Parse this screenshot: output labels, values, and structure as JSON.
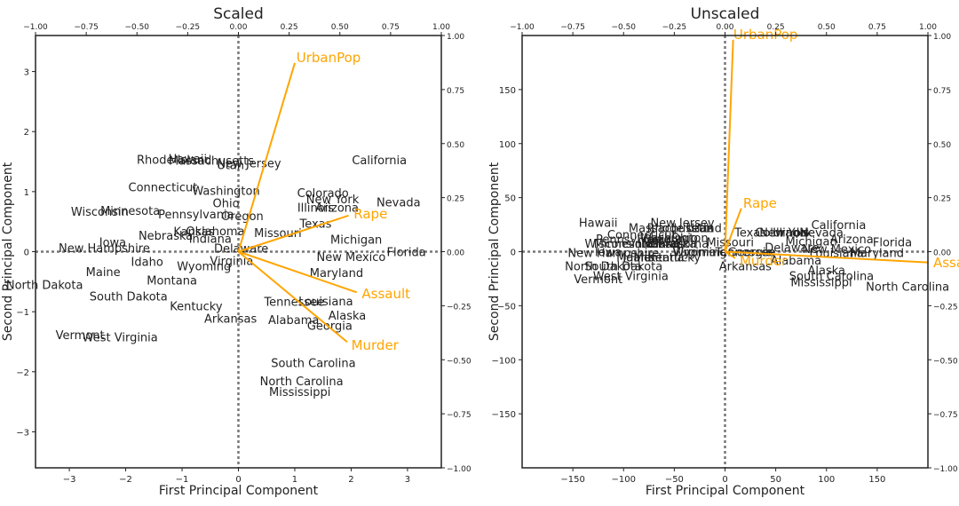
{
  "chart_data": [
    {
      "type": "scatter",
      "title": "Scaled",
      "xlabel": "First Principal Component",
      "ylabel": "Second Principal Component",
      "xlim": [
        -3.6,
        3.6
      ],
      "ylim": [
        -3.6,
        3.6
      ],
      "xticks": [
        "−3",
        "−2",
        "−1",
        "0",
        "1",
        "2",
        "3"
      ],
      "xtick_values": [
        -3,
        -2,
        -1,
        0,
        1,
        2,
        3
      ],
      "yticks": [
        "−3",
        "−2",
        "−1",
        "0",
        "1",
        "2",
        "3"
      ],
      "ytick_values": [
        -3,
        -2,
        -1,
        0,
        1,
        2,
        3
      ],
      "loading_lim": [
        -1,
        1
      ],
      "top_ticks": [
        "−1.00",
        "−0.75",
        "−0.50",
        "−0.25",
        "0.00",
        "0.25",
        "0.50",
        "0.75",
        "1.00"
      ],
      "right_ticks": [
        "−1.00",
        "−0.75",
        "−0.50",
        "−0.25",
        "0.00",
        "0.25",
        "0.50",
        "0.75",
        "1.00"
      ],
      "tick_values": [
        -1,
        -0.75,
        -0.5,
        -0.25,
        0,
        0.25,
        0.5,
        0.75,
        1
      ],
      "points": [
        {
          "label": "Alabama",
          "x": 0.98,
          "y": -1.13
        },
        {
          "label": "Alaska",
          "x": 1.93,
          "y": -1.06
        },
        {
          "label": "Arizona",
          "x": 1.75,
          "y": 0.74
        },
        {
          "label": "Arkansas",
          "x": -0.14,
          "y": -1.11
        },
        {
          "label": "California",
          "x": 2.5,
          "y": 1.53
        },
        {
          "label": "Colorado",
          "x": 1.5,
          "y": 0.98
        },
        {
          "label": "Connecticut",
          "x": -1.34,
          "y": 1.08
        },
        {
          "label": "Delaware",
          "x": 0.05,
          "y": 0.06
        },
        {
          "label": "Florida",
          "x": 2.98,
          "y": 0.0
        },
        {
          "label": "Georgia",
          "x": 1.62,
          "y": -1.23
        },
        {
          "label": "Hawaii",
          "x": -0.9,
          "y": 1.55
        },
        {
          "label": "Idaho",
          "x": -1.62,
          "y": -0.16
        },
        {
          "label": "Illinois",
          "x": 1.37,
          "y": 0.74
        },
        {
          "label": "Indiana",
          "x": -0.5,
          "y": 0.22
        },
        {
          "label": "Iowa",
          "x": -2.23,
          "y": 0.16
        },
        {
          "label": "Kansas",
          "x": -0.79,
          "y": 0.34
        },
        {
          "label": "Kentucky",
          "x": -0.75,
          "y": -0.9
        },
        {
          "label": "Louisiana",
          "x": 1.55,
          "y": -0.82
        },
        {
          "label": "Maine",
          "x": -2.4,
          "y": -0.33
        },
        {
          "label": "Maryland",
          "x": 1.74,
          "y": -0.35
        },
        {
          "label": "Massachusetts",
          "x": -0.48,
          "y": 1.52
        },
        {
          "label": "Michigan",
          "x": 2.09,
          "y": 0.21
        },
        {
          "label": "Minnesota",
          "x": -1.92,
          "y": 0.69
        },
        {
          "label": "Mississippi",
          "x": 1.09,
          "y": -2.33
        },
        {
          "label": "Missouri",
          "x": 0.7,
          "y": 0.32
        },
        {
          "label": "Montana",
          "x": -1.18,
          "y": -0.47
        },
        {
          "label": "Nebraska",
          "x": -1.29,
          "y": 0.27
        },
        {
          "label": "Nevada",
          "x": 2.84,
          "y": 0.83
        },
        {
          "label": "New Hampshire",
          "x": -2.38,
          "y": 0.07
        },
        {
          "label": "New Jersey",
          "x": 0.19,
          "y": 1.48
        },
        {
          "label": "New Mexico",
          "x": 2.0,
          "y": -0.08
        },
        {
          "label": "New York",
          "x": 1.67,
          "y": 0.88
        },
        {
          "label": "North Carolina",
          "x": 1.12,
          "y": -2.15
        },
        {
          "label": "North Dakota",
          "x": -3.44,
          "y": -0.55
        },
        {
          "label": "Ohio",
          "x": -0.22,
          "y": 0.81
        },
        {
          "label": "Oklahoma",
          "x": -0.41,
          "y": 0.35
        },
        {
          "label": "Oregon",
          "x": 0.07,
          "y": 0.6
        },
        {
          "label": "Pennsylvania",
          "x": -0.75,
          "y": 0.63
        },
        {
          "label": "Rhode Island",
          "x": -1.14,
          "y": 1.54
        },
        {
          "label": "South Carolina",
          "x": 1.33,
          "y": -1.85
        },
        {
          "label": "South Dakota",
          "x": -1.95,
          "y": -0.74
        },
        {
          "label": "Tennessee",
          "x": 0.99,
          "y": -0.83
        },
        {
          "label": "Texas",
          "x": 1.37,
          "y": 0.47
        },
        {
          "label": "Utah",
          "x": -0.14,
          "y": 1.45
        },
        {
          "label": "Vermont",
          "x": -2.81,
          "y": -1.38
        },
        {
          "label": "Virginia",
          "x": -0.12,
          "y": -0.15
        },
        {
          "label": "Washington",
          "x": -0.22,
          "y": 1.02
        },
        {
          "label": "West Virginia",
          "x": -2.1,
          "y": -1.42
        },
        {
          "label": "Wisconsin",
          "x": -2.46,
          "y": 0.67
        },
        {
          "label": "Wyoming",
          "x": -0.61,
          "y": -0.24
        }
      ],
      "loadings": [
        {
          "label": "Murder",
          "x": 0.536,
          "y": -0.418
        },
        {
          "label": "Assault",
          "x": 0.583,
          "y": -0.188
        },
        {
          "label": "UrbanPop",
          "x": 0.278,
          "y": 0.873
        },
        {
          "label": "Rape",
          "x": 0.543,
          "y": 0.167
        }
      ],
      "grid": false,
      "colors": {
        "points": "#222222",
        "loadings": "#FFA500",
        "zero_lines": "#777777"
      }
    },
    {
      "type": "scatter",
      "title": "Unscaled",
      "xlabel": "First Principal Component",
      "ylabel": "Second Principal Component",
      "xlim": [
        -200,
        200
      ],
      "ylim": [
        -200,
        200
      ],
      "xticks": [
        "−150",
        "−100",
        "−50",
        "0",
        "50",
        "100",
        "150"
      ],
      "xtick_values": [
        -150,
        -100,
        -50,
        0,
        50,
        100,
        150
      ],
      "yticks": [
        "−150",
        "−100",
        "−50",
        "0",
        "50",
        "100",
        "150"
      ],
      "ytick_values": [
        -150,
        -100,
        -50,
        0,
        50,
        100,
        150
      ],
      "loading_lim": [
        -1,
        1
      ],
      "top_ticks": [
        "−1.00",
        "−0.75",
        "−0.50",
        "−0.25",
        "0.00",
        "0.25",
        "0.50",
        "0.75",
        "1.00"
      ],
      "right_ticks": [
        "−1.00",
        "−0.75",
        "−0.50",
        "−0.25",
        "0.00",
        "0.25",
        "0.50",
        "0.75",
        "1.00"
      ],
      "tick_values": [
        -1,
        -0.75,
        -0.5,
        -0.25,
        0,
        0.25,
        0.5,
        0.75,
        1
      ],
      "points": [
        {
          "label": "Hawaii",
          "x": -125,
          "y": 27
        },
        {
          "label": "California",
          "x": 112,
          "y": 25
        },
        {
          "label": "Arizona",
          "x": 125,
          "y": 12
        },
        {
          "label": "Florida",
          "x": 165,
          "y": 9
        },
        {
          "label": "New Jersey",
          "x": -42,
          "y": 27
        },
        {
          "label": "Massachusetts",
          "x": -53,
          "y": 22
        },
        {
          "label": "Rhode Island",
          "x": -40,
          "y": 22
        },
        {
          "label": "Utah",
          "x": -25,
          "y": 22
        },
        {
          "label": "Connecticut",
          "x": -82,
          "y": 16
        },
        {
          "label": "Wisconsin",
          "x": -110,
          "y": 8
        },
        {
          "label": "Minnesota",
          "x": -100,
          "y": 8
        },
        {
          "label": "Pennsylvania",
          "x": -90,
          "y": 12
        },
        {
          "label": "Washington",
          "x": -50,
          "y": 13
        },
        {
          "label": "Ohio",
          "x": -40,
          "y": 13
        },
        {
          "label": "Oregon",
          "x": -60,
          "y": 12
        },
        {
          "label": "Nebraska",
          "x": -55,
          "y": 8
        },
        {
          "label": "Kansas",
          "x": -60,
          "y": 8
        },
        {
          "label": "Indiana",
          "x": -65,
          "y": 8
        },
        {
          "label": "Oklahoma",
          "x": -45,
          "y": 8
        },
        {
          "label": "Missouri",
          "x": 5,
          "y": 9
        },
        {
          "label": "Colorado",
          "x": 55,
          "y": 18
        },
        {
          "label": "New York",
          "x": 60,
          "y": 18
        },
        {
          "label": "Illinois",
          "x": 65,
          "y": 18
        },
        {
          "label": "Texas",
          "x": 25,
          "y": 18
        },
        {
          "label": "Nevada",
          "x": 95,
          "y": 18
        },
        {
          "label": "Michigan",
          "x": 85,
          "y": 10
        },
        {
          "label": "Delaware",
          "x": 66,
          "y": 4
        },
        {
          "label": "Louisiana",
          "x": 110,
          "y": -1
        },
        {
          "label": "New Mexico",
          "x": 110,
          "y": 3
        },
        {
          "label": "Maryland",
          "x": 150,
          "y": -1
        },
        {
          "label": "Virginia",
          "x": -30,
          "y": 0
        },
        {
          "label": "Wyoming",
          "x": -25,
          "y": 0
        },
        {
          "label": "Tennessee",
          "x": 20,
          "y": 0
        },
        {
          "label": "Georgia",
          "x": 25,
          "y": 0
        },
        {
          "label": "Alabama",
          "x": 70,
          "y": -8
        },
        {
          "label": "Alaska",
          "x": 100,
          "y": -17
        },
        {
          "label": "South Carolina",
          "x": 105,
          "y": -22
        },
        {
          "label": "Mississippi",
          "x": 95,
          "y": -28
        },
        {
          "label": "North Carolina",
          "x": 180,
          "y": -32
        },
        {
          "label": "Arkansas",
          "x": 20,
          "y": -13
        },
        {
          "label": "Kentucky",
          "x": -50,
          "y": -5
        },
        {
          "label": "Iowa",
          "x": -115,
          "y": 0
        },
        {
          "label": "New Hampshire",
          "x": -110,
          "y": -1
        },
        {
          "label": "Idaho",
          "x": -85,
          "y": -5
        },
        {
          "label": "Maine",
          "x": -90,
          "y": -5
        },
        {
          "label": "Montana",
          "x": -65,
          "y": -5
        },
        {
          "label": "North Dakota",
          "x": -120,
          "y": -13
        },
        {
          "label": "South Dakota",
          "x": -100,
          "y": -13
        },
        {
          "label": "West Virginia",
          "x": -93,
          "y": -22
        },
        {
          "label": "Vermont",
          "x": -125,
          "y": -25
        }
      ],
      "loadings": [
        {
          "label": "UrbanPop",
          "x": 0.04,
          "y": 0.98
        },
        {
          "label": "Rape",
          "x": 0.08,
          "y": 0.2
        },
        {
          "label": "Murder",
          "x": 0.05,
          "y": -0.03
        },
        {
          "label": "Assault",
          "x": 1.0,
          "y": -0.05
        }
      ],
      "grid": false,
      "colors": {
        "points": "#222222",
        "loadings": "#FFA500",
        "zero_lines": "#777777"
      }
    }
  ]
}
